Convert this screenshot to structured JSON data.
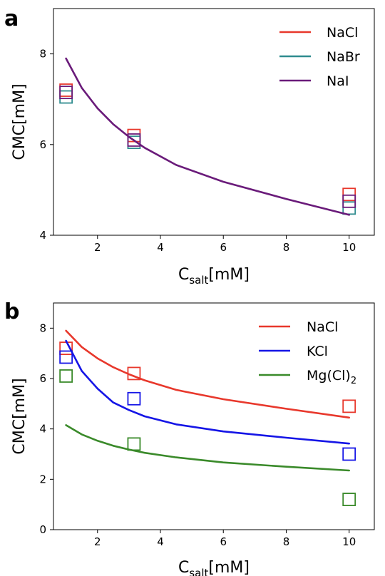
{
  "chart_data": [
    {
      "panel": "a",
      "type": "line",
      "xlabel": {
        "main": "C",
        "sub": "salt",
        "unit": "[mM]"
      },
      "ylabel": "CMC[mM]",
      "xlim": [
        0.6,
        10.8
      ],
      "ylim": [
        4,
        9
      ],
      "xticks": [
        2,
        4,
        6,
        8,
        10
      ],
      "yticks": [
        4,
        6,
        8
      ],
      "grid": false,
      "legend_position": "top-right",
      "series": [
        {
          "name": "NaCl",
          "color": "#e8382c",
          "line": {
            "x": [],
            "y": []
          },
          "markers": {
            "x": [
              1,
              3.16,
              10
            ],
            "y": [
              7.2,
              6.2,
              4.9
            ]
          }
        },
        {
          "name": "NaBr",
          "color": "#2f8c8f",
          "line": {
            "x": [],
            "y": []
          },
          "markers": {
            "x": [
              1,
              3.16,
              10
            ],
            "y": [
              7.05,
              6.05,
              4.6
            ]
          }
        },
        {
          "name": "NaI",
          "color": "#6a1b7a",
          "line": {
            "x": [
              1,
              1.5,
              2,
              2.5,
              3,
              3.5,
              4.5,
              6,
              8,
              10
            ],
            "y": [
              7.9,
              7.25,
              6.8,
              6.45,
              6.17,
              5.93,
              5.55,
              5.18,
              4.8,
              4.45
            ]
          },
          "markers": {
            "x": [
              1,
              3.16,
              10
            ],
            "y": [
              7.15,
              6.1,
              4.75
            ]
          }
        }
      ]
    },
    {
      "panel": "b",
      "type": "line",
      "xlabel": {
        "main": "C",
        "sub": "salt",
        "unit": "[mM]"
      },
      "ylabel": "CMC[mM]",
      "xlim": [
        0.6,
        10.8
      ],
      "ylim": [
        0,
        9
      ],
      "xticks": [
        2,
        4,
        6,
        8,
        10
      ],
      "yticks": [
        0,
        2,
        4,
        6,
        8
      ],
      "grid": false,
      "legend_position": "top-right",
      "series": [
        {
          "name": "NaCl",
          "color": "#e8382c",
          "line": {
            "x": [
              1,
              1.5,
              2,
              2.5,
              3,
              3.5,
              4.5,
              6,
              8,
              10
            ],
            "y": [
              7.9,
              7.25,
              6.8,
              6.45,
              6.17,
              5.93,
              5.55,
              5.18,
              4.8,
              4.45
            ]
          },
          "markers": {
            "x": [
              1,
              3.16,
              10
            ],
            "y": [
              7.2,
              6.2,
              4.9
            ]
          }
        },
        {
          "name": "KCl",
          "color": "#1515e6",
          "line": {
            "x": [
              1,
              1.5,
              2,
              2.5,
              3,
              3.5,
              4.5,
              6,
              8,
              10
            ],
            "y": [
              7.5,
              6.3,
              5.6,
              5.05,
              4.75,
              4.5,
              4.18,
              3.9,
              3.65,
              3.42
            ]
          },
          "markers": {
            "x": [
              1,
              3.16,
              10
            ],
            "y": [
              6.85,
              5.2,
              3.0
            ]
          }
        },
        {
          "name": "Mg(Cl)",
          "name_sub": "2",
          "color": "#3a8a2a",
          "line": {
            "x": [
              1,
              1.5,
              2,
              2.5,
              3,
              3.5,
              4.5,
              6,
              8,
              10
            ],
            "y": [
              4.15,
              3.78,
              3.53,
              3.33,
              3.18,
              3.05,
              2.87,
              2.67,
              2.5,
              2.35
            ]
          },
          "markers": {
            "x": [
              1,
              3.16,
              10
            ],
            "y": [
              6.1,
              3.4,
              1.2
            ]
          }
        }
      ]
    }
  ]
}
